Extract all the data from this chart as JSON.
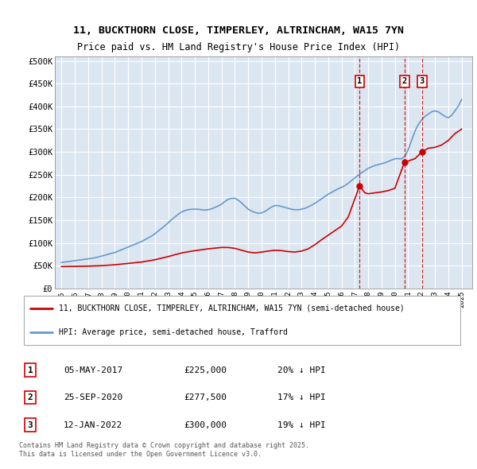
{
  "title_line1": "11, BUCKTHORN CLOSE, TIMPERLEY, ALTRINCHAM, WA15 7YN",
  "title_line2": "Price paid vs. HM Land Registry's House Price Index (HPI)",
  "ylim": [
    0,
    510000
  ],
  "yticks": [
    0,
    50000,
    100000,
    150000,
    200000,
    250000,
    300000,
    350000,
    400000,
    450000,
    500000
  ],
  "ytick_labels": [
    "£0",
    "£50K",
    "£100K",
    "£150K",
    "£200K",
    "£250K",
    "£300K",
    "£350K",
    "£400K",
    "£450K",
    "£500K"
  ],
  "plot_bg_color": "#dce6f1",
  "grid_color": "#ffffff",
  "red_color": "#cc0000",
  "blue_color": "#6699cc",
  "legend_label_red": "11, BUCKTHORN CLOSE, TIMPERLEY, ALTRINCHAM, WA15 7YN (semi-detached house)",
  "legend_label_blue": "HPI: Average price, semi-detached house, Trafford",
  "transaction_dates": [
    2017.35,
    2020.73,
    2022.04
  ],
  "transaction_prices": [
    225000,
    277500,
    300000
  ],
  "transaction_labels": [
    "1",
    "2",
    "3"
  ],
  "transaction_info": [
    {
      "label": "1",
      "date": "05-MAY-2017",
      "price": "£225,000",
      "note": "20% ↓ HPI"
    },
    {
      "label": "2",
      "date": "25-SEP-2020",
      "price": "£277,500",
      "note": "17% ↓ HPI"
    },
    {
      "label": "3",
      "date": "12-JAN-2022",
      "price": "£300,000",
      "note": "19% ↓ HPI"
    }
  ],
  "footer_text": "Contains HM Land Registry data © Crown copyright and database right 2025.\nThis data is licensed under the Open Government Licence v3.0.",
  "hpi_x": [
    1995.0,
    1995.25,
    1995.5,
    1995.75,
    1996.0,
    1996.25,
    1996.5,
    1996.75,
    1997.0,
    1997.25,
    1997.5,
    1997.75,
    1998.0,
    1998.25,
    1998.5,
    1998.75,
    1999.0,
    1999.25,
    1999.5,
    1999.75,
    2000.0,
    2000.25,
    2000.5,
    2000.75,
    2001.0,
    2001.25,
    2001.5,
    2001.75,
    2002.0,
    2002.25,
    2002.5,
    2002.75,
    2003.0,
    2003.25,
    2003.5,
    2003.75,
    2004.0,
    2004.25,
    2004.5,
    2004.75,
    2005.0,
    2005.25,
    2005.5,
    2005.75,
    2006.0,
    2006.25,
    2006.5,
    2006.75,
    2007.0,
    2007.25,
    2007.5,
    2007.75,
    2008.0,
    2008.25,
    2008.5,
    2008.75,
    2009.0,
    2009.25,
    2009.5,
    2009.75,
    2010.0,
    2010.25,
    2010.5,
    2010.75,
    2011.0,
    2011.25,
    2011.5,
    2011.75,
    2012.0,
    2012.25,
    2012.5,
    2012.75,
    2013.0,
    2013.25,
    2013.5,
    2013.75,
    2014.0,
    2014.25,
    2014.5,
    2014.75,
    2015.0,
    2015.25,
    2015.5,
    2015.75,
    2016.0,
    2016.25,
    2016.5,
    2016.75,
    2017.0,
    2017.25,
    2017.5,
    2017.75,
    2018.0,
    2018.25,
    2018.5,
    2018.75,
    2019.0,
    2019.25,
    2019.5,
    2019.75,
    2020.0,
    2020.25,
    2020.5,
    2020.75,
    2021.0,
    2021.25,
    2021.5,
    2021.75,
    2022.0,
    2022.25,
    2022.5,
    2022.75,
    2023.0,
    2023.25,
    2023.5,
    2023.75,
    2024.0,
    2024.25,
    2024.5,
    2024.75,
    2025.0
  ],
  "hpi_y": [
    57000,
    58000,
    59000,
    60000,
    61000,
    62000,
    63000,
    64000,
    65000,
    66000,
    67500,
    69000,
    71000,
    73000,
    75000,
    77000,
    79000,
    82000,
    85000,
    88000,
    91000,
    94000,
    97000,
    100000,
    103000,
    107000,
    111000,
    115000,
    120000,
    126000,
    132000,
    138000,
    144000,
    151000,
    157000,
    163000,
    168000,
    171000,
    173000,
    174000,
    174000,
    174000,
    173000,
    172000,
    173000,
    175000,
    178000,
    181000,
    185000,
    191000,
    196000,
    198000,
    198000,
    194000,
    188000,
    181000,
    174000,
    170000,
    167000,
    165000,
    166000,
    169000,
    174000,
    179000,
    182000,
    182000,
    180000,
    178000,
    176000,
    174000,
    173000,
    173000,
    174000,
    176000,
    179000,
    183000,
    187000,
    192000,
    197000,
    202000,
    207000,
    211000,
    215000,
    219000,
    222000,
    226000,
    231000,
    237000,
    243000,
    249000,
    254000,
    259000,
    264000,
    267000,
    270000,
    272000,
    274000,
    276000,
    279000,
    282000,
    285000,
    285000,
    285000,
    290000,
    305000,
    325000,
    345000,
    360000,
    370000,
    378000,
    383000,
    388000,
    390000,
    388000,
    383000,
    378000,
    375000,
    380000,
    390000,
    400000,
    415000
  ],
  "price_x": [
    1995.0,
    1996.0,
    1997.0,
    1998.0,
    1999.0,
    2000.0,
    2001.0,
    2002.0,
    2003.0,
    2004.0,
    2005.0,
    2006.0,
    2007.0,
    2007.5,
    2008.0,
    2008.5,
    2009.0,
    2009.5,
    2010.0,
    2010.5,
    2011.0,
    2011.5,
    2012.0,
    2012.5,
    2013.0,
    2013.5,
    2014.0,
    2014.5,
    2015.0,
    2015.5,
    2016.0,
    2016.5,
    2017.35,
    2017.75,
    2018.0,
    2018.5,
    2019.0,
    2019.5,
    2020.0,
    2020.5,
    2020.73,
    2021.0,
    2021.5,
    2022.04,
    2022.5,
    2023.0,
    2023.5,
    2024.0,
    2024.5,
    2025.0
  ],
  "price_y": [
    48000,
    48500,
    49000,
    50000,
    52000,
    55000,
    58000,
    63000,
    70000,
    78000,
    83000,
    87000,
    90000,
    90000,
    88000,
    84000,
    80000,
    78000,
    80000,
    82000,
    84000,
    83000,
    81000,
    80000,
    82000,
    87000,
    96000,
    107000,
    117000,
    127000,
    137000,
    157000,
    225000,
    210000,
    208000,
    210000,
    212000,
    215000,
    220000,
    260000,
    277500,
    280000,
    285000,
    300000,
    308000,
    310000,
    315000,
    325000,
    340000,
    350000
  ]
}
